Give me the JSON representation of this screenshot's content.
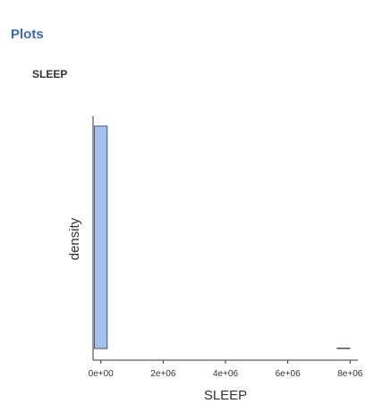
{
  "panel": {
    "section_title": "Plots",
    "plot_title": "SLEEP"
  },
  "chart_data": {
    "type": "bar",
    "title": "SLEEP",
    "xlabel": "SLEEP",
    "ylabel": "density",
    "x_ticks": [
      0,
      2000000,
      4000000,
      6000000,
      8000000
    ],
    "x_tick_labels": [
      "0e+00",
      "2e+06",
      "4e+06",
      "6e+06",
      "8e+06"
    ],
    "xlim": [
      -250000,
      8250000
    ],
    "bin_width": 410000,
    "bins": [
      {
        "x0": -205000,
        "x1": 205000,
        "density": 1.0
      },
      {
        "x0": 205000,
        "x1": 615000,
        "density": 0.0
      },
      {
        "x0": 615000,
        "x1": 1025000,
        "density": 0.0
      },
      {
        "x0": 1025000,
        "x1": 1435000,
        "density": 0.0
      },
      {
        "x0": 1435000,
        "x1": 1845000,
        "density": 0.0
      },
      {
        "x0": 1845000,
        "x1": 2255000,
        "density": 0.0
      },
      {
        "x0": 2255000,
        "x1": 2665000,
        "density": 0.0
      },
      {
        "x0": 2665000,
        "x1": 3075000,
        "density": 0.0
      },
      {
        "x0": 3075000,
        "x1": 3485000,
        "density": 0.0
      },
      {
        "x0": 3485000,
        "x1": 3895000,
        "density": 0.0
      },
      {
        "x0": 3895000,
        "x1": 4305000,
        "density": 0.0
      },
      {
        "x0": 4305000,
        "x1": 4715000,
        "density": 0.0
      },
      {
        "x0": 4715000,
        "x1": 5125000,
        "density": 0.0
      },
      {
        "x0": 5125000,
        "x1": 5535000,
        "density": 0.0
      },
      {
        "x0": 5535000,
        "x1": 5945000,
        "density": 0.0
      },
      {
        "x0": 5945000,
        "x1": 6355000,
        "density": 0.0
      },
      {
        "x0": 6355000,
        "x1": 6765000,
        "density": 0.0
      },
      {
        "x0": 6765000,
        "x1": 7175000,
        "density": 0.0
      },
      {
        "x0": 7175000,
        "x1": 7585000,
        "density": 0.0
      },
      {
        "x0": 7585000,
        "x1": 7995000,
        "density": 0.002
      }
    ],
    "ylim": [
      0,
      1.0
    ],
    "y_ticks_shown": false,
    "grid": false,
    "legend": "none",
    "colors": {
      "bar_fill": "#a4c0ee",
      "bar_stroke": "#333333",
      "axis": "#333333",
      "section_title": "#3e6aa6"
    }
  }
}
